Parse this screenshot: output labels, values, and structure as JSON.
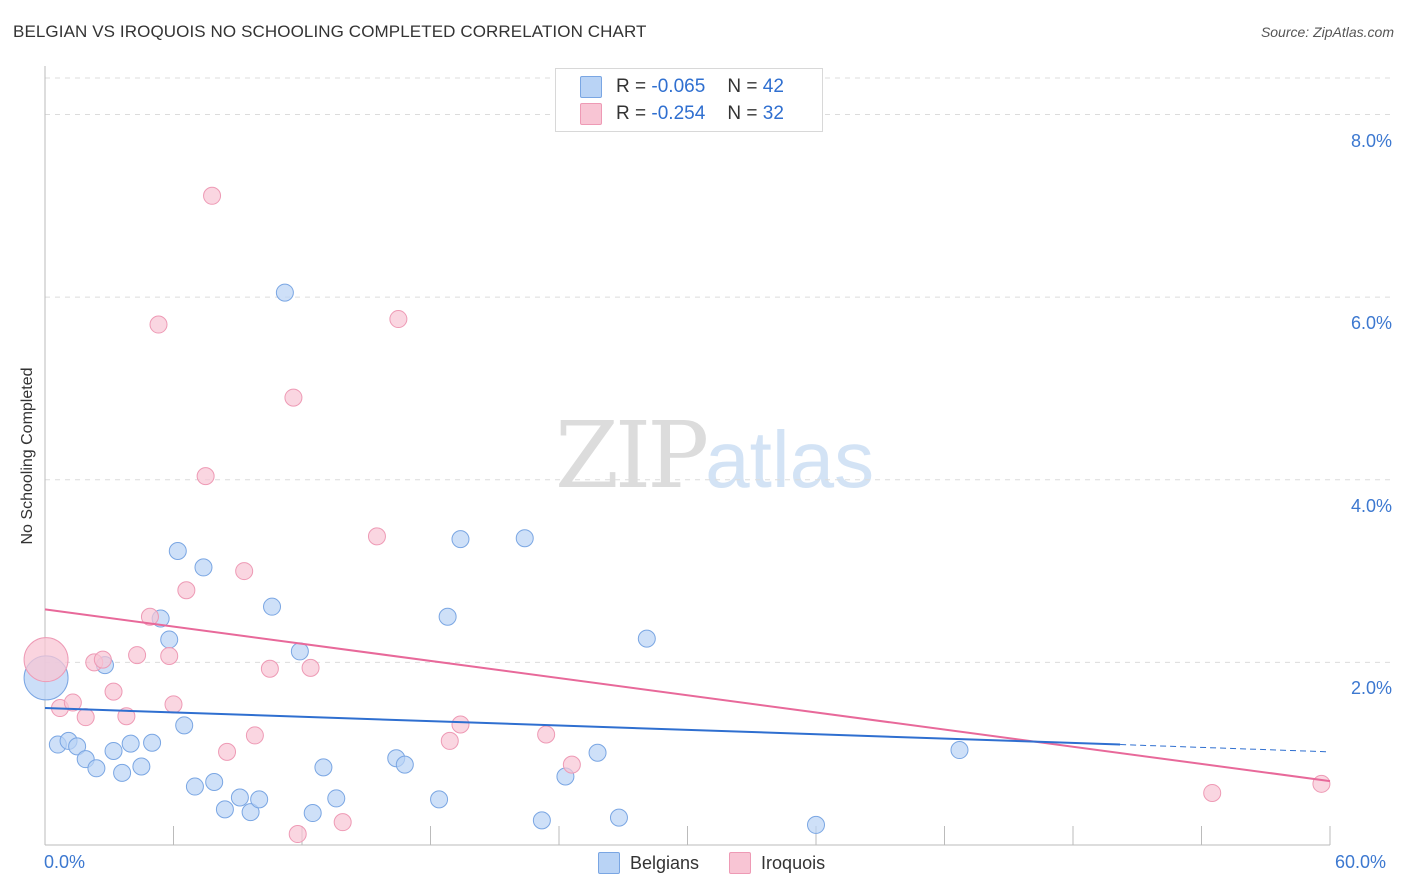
{
  "title": "BELGIAN VS IROQUOIS NO SCHOOLING COMPLETED CORRELATION CHART",
  "source": "Source: ZipAtlas.com",
  "watermark": {
    "part1": "ZIP",
    "part2": "atlas"
  },
  "legend": {
    "r_label": "R =",
    "n_label": "N =",
    "belgians": {
      "r": "-0.065",
      "n": "42"
    },
    "iroquois": {
      "r": "-0.254",
      "n": "32"
    }
  },
  "bottom_legend": {
    "belgians": "Belgians",
    "iroquois": "Iroquois"
  },
  "colors": {
    "belgians_fill": "#b9d3f5",
    "belgians_stroke": "#7aa6e3",
    "belgians_line": "#2f6fd0",
    "iroquois_fill": "#f8c5d4",
    "iroquois_stroke": "#ee9ab5",
    "iroquois_line": "#e8699a",
    "tick_text": "#3c78d0"
  },
  "chart_data": {
    "type": "scatter",
    "title": "BELGIAN VS IROQUOIS NO SCHOOLING COMPLETED CORRELATION CHART",
    "xlabel": "",
    "ylabel": "No Schooling Completed",
    "xlim": [
      0,
      60
    ],
    "ylim": [
      0,
      8.4
    ],
    "x_tick_labels": [
      "0.0%",
      "60.0%"
    ],
    "y_ticks": [
      2,
      4,
      6,
      8
    ],
    "y_tick_labels": [
      "2.0%",
      "4.0%",
      "6.0%",
      "8.0%"
    ],
    "grid": "horizontal dashed",
    "series": [
      {
        "name": "Belgians",
        "r": -0.065,
        "n": 42,
        "trend": {
          "x0": 0,
          "y0": 1.5,
          "x1": 50.2,
          "y1": 1.1,
          "dash_to_x": 60,
          "dash_to_y": 1.02
        },
        "points": [
          {
            "x": 0.05,
            "y": 1.83,
            "big": true
          },
          {
            "x": 0.6,
            "y": 1.1
          },
          {
            "x": 1.1,
            "y": 1.14
          },
          {
            "x": 1.5,
            "y": 1.08
          },
          {
            "x": 1.9,
            "y": 0.94
          },
          {
            "x": 2.4,
            "y": 0.84
          },
          {
            "x": 2.8,
            "y": 1.97
          },
          {
            "x": 3.2,
            "y": 1.03
          },
          {
            "x": 3.6,
            "y": 0.79
          },
          {
            "x": 4.0,
            "y": 1.11
          },
          {
            "x": 4.5,
            "y": 0.86
          },
          {
            "x": 5.0,
            "y": 1.12
          },
          {
            "x": 5.4,
            "y": 2.48
          },
          {
            "x": 5.8,
            "y": 2.25
          },
          {
            "x": 6.2,
            "y": 3.22
          },
          {
            "x": 6.5,
            "y": 1.31
          },
          {
            "x": 7.0,
            "y": 0.64
          },
          {
            "x": 7.4,
            "y": 3.04
          },
          {
            "x": 7.9,
            "y": 0.69
          },
          {
            "x": 8.4,
            "y": 0.39
          },
          {
            "x": 9.1,
            "y": 0.52
          },
          {
            "x": 9.6,
            "y": 0.36
          },
          {
            "x": 10.0,
            "y": 0.5
          },
          {
            "x": 10.6,
            "y": 2.61
          },
          {
            "x": 11.2,
            "y": 6.05
          },
          {
            "x": 11.9,
            "y": 2.12
          },
          {
            "x": 12.5,
            "y": 0.35
          },
          {
            "x": 13.0,
            "y": 0.85
          },
          {
            "x": 13.6,
            "y": 0.51
          },
          {
            "x": 16.4,
            "y": 0.95
          },
          {
            "x": 16.8,
            "y": 0.88
          },
          {
            "x": 18.4,
            "y": 0.5
          },
          {
            "x": 18.8,
            "y": 2.5
          },
          {
            "x": 19.4,
            "y": 3.35
          },
          {
            "x": 22.4,
            "y": 3.36
          },
          {
            "x": 23.2,
            "y": 0.27
          },
          {
            "x": 24.3,
            "y": 0.75
          },
          {
            "x": 25.8,
            "y": 1.01
          },
          {
            "x": 26.8,
            "y": 0.3
          },
          {
            "x": 28.1,
            "y": 2.26
          },
          {
            "x": 36.0,
            "y": 0.22
          },
          {
            "x": 42.7,
            "y": 1.04
          }
        ]
      },
      {
        "name": "Iroquois",
        "r": -0.254,
        "n": 32,
        "trend": {
          "x0": 0,
          "y0": 2.58,
          "x1": 60,
          "y1": 0.7
        },
        "points": [
          {
            "x": 0.05,
            "y": 2.03,
            "big": true
          },
          {
            "x": 0.7,
            "y": 1.5
          },
          {
            "x": 1.3,
            "y": 1.56
          },
          {
            "x": 1.9,
            "y": 1.4
          },
          {
            "x": 2.3,
            "y": 2.0
          },
          {
            "x": 2.7,
            "y": 2.03
          },
          {
            "x": 3.2,
            "y": 1.68
          },
          {
            "x": 3.8,
            "y": 1.41
          },
          {
            "x": 4.3,
            "y": 2.08
          },
          {
            "x": 4.9,
            "y": 2.5
          },
          {
            "x": 5.3,
            "y": 5.7
          },
          {
            "x": 5.8,
            "y": 2.07
          },
          {
            "x": 6.0,
            "y": 1.54
          },
          {
            "x": 6.6,
            "y": 2.79
          },
          {
            "x": 7.5,
            "y": 4.04
          },
          {
            "x": 7.8,
            "y": 7.11
          },
          {
            "x": 8.5,
            "y": 1.02
          },
          {
            "x": 9.3,
            "y": 3.0
          },
          {
            "x": 9.8,
            "y": 1.2
          },
          {
            "x": 10.5,
            "y": 1.93
          },
          {
            "x": 11.6,
            "y": 4.9
          },
          {
            "x": 11.8,
            "y": 0.12
          },
          {
            "x": 12.4,
            "y": 1.94
          },
          {
            "x": 13.9,
            "y": 0.25
          },
          {
            "x": 15.5,
            "y": 3.38
          },
          {
            "x": 16.5,
            "y": 5.76
          },
          {
            "x": 18.9,
            "y": 1.14
          },
          {
            "x": 19.4,
            "y": 1.32
          },
          {
            "x": 23.4,
            "y": 1.21
          },
          {
            "x": 24.6,
            "y": 0.88
          },
          {
            "x": 54.5,
            "y": 0.57
          },
          {
            "x": 59.6,
            "y": 0.67
          }
        ]
      }
    ]
  }
}
